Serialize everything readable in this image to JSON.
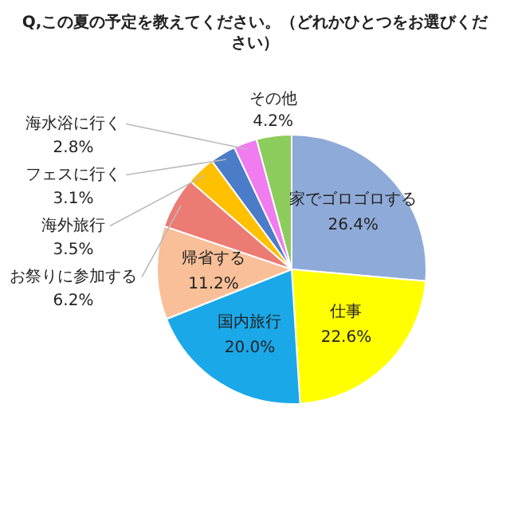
{
  "chart_data": {
    "type": "pie",
    "title": "Q,この夏の予定を教えてください。（どれかひとつをお選びください）",
    "categories": [
      "家でゴロゴロする",
      "仕事",
      "国内旅行",
      "帰省する",
      "お祭りに参加する",
      "海外旅行",
      "フェスに行く",
      "海水浴に行く",
      "その他"
    ],
    "values": [
      26.4,
      22.6,
      20.0,
      11.2,
      6.2,
      3.5,
      3.1,
      2.8,
      4.2
    ],
    "colors": [
      "#8eaad8",
      "#ffff00",
      "#1aa8e8",
      "#f8bf98",
      "#ec7b74",
      "#ffc000",
      "#4a7cc8",
      "#f07cf0",
      "#8ccc5c"
    ],
    "value_labels": [
      "26.4%",
      "22.6%",
      "20.0%",
      "11.2%",
      "6.2%",
      "3.5%",
      "3.1%",
      "2.8%",
      "4.2%"
    ],
    "legend": false
  }
}
